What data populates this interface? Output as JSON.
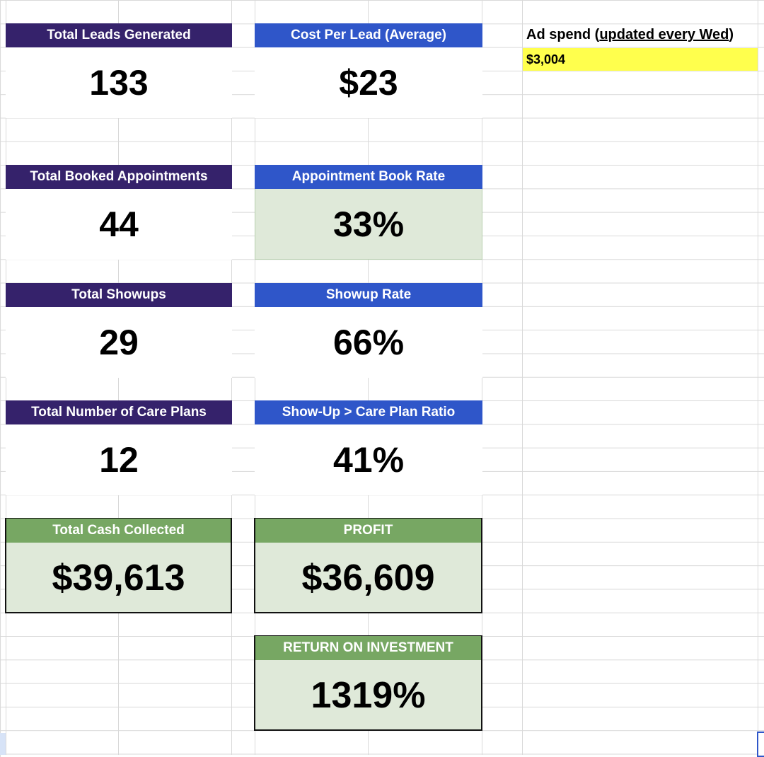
{
  "metrics_left": [
    {
      "label": "Total Leads Generated",
      "value": "133"
    },
    {
      "label": "Total Booked Appointments",
      "value": "44"
    },
    {
      "label": "Total Showups",
      "value": "29"
    },
    {
      "label": "Total Number of Care Plans",
      "value": "12"
    },
    {
      "label": "Total Cash Collected",
      "value": "$39,613"
    }
  ],
  "metrics_right": [
    {
      "label": "Cost Per Lead (Average)",
      "value": "$23"
    },
    {
      "label": "Appointment Book Rate",
      "value": "33%"
    },
    {
      "label": "Showup Rate",
      "value": "66%"
    },
    {
      "label": "Show-Up > Care Plan Ratio",
      "value": "41%"
    },
    {
      "label": "PROFIT",
      "value": "$36,609"
    },
    {
      "label": "RETURN ON INVESTMENT",
      "value": "1319%"
    }
  ],
  "ad_spend": {
    "label_prefix": "Ad spend (",
    "label_link": "updated every Wed",
    "label_suffix": ")",
    "value": "$3,004"
  },
  "colors": {
    "purple_header": "#35226b",
    "blue_header": "#2f56c9",
    "green_header": "#77a763",
    "tint": "#dfe9d9",
    "highlight": "#ffff4d"
  }
}
